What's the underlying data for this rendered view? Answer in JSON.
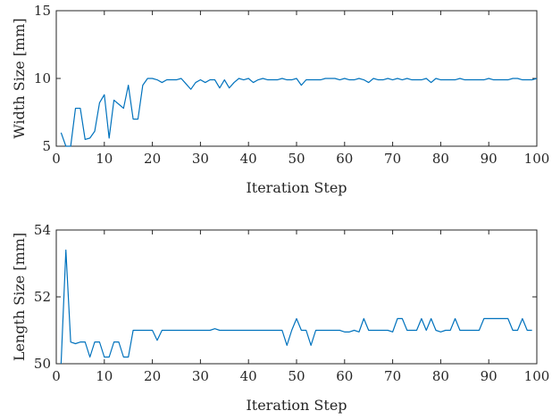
{
  "chart_data": [
    {
      "type": "line",
      "xlabel": "Iteration Step",
      "ylabel": "Width Size [mm]",
      "xlim": [
        0,
        100
      ],
      "ylim": [
        5,
        15
      ],
      "xticks": [
        0,
        10,
        20,
        30,
        40,
        50,
        60,
        70,
        80,
        90,
        100
      ],
      "yticks": [
        5,
        10,
        15
      ],
      "grid": false,
      "series": [
        {
          "color": "#0072bd",
          "x": [
            1,
            2,
            3,
            4,
            5,
            6,
            7,
            8,
            9,
            10,
            11,
            12,
            13,
            14,
            15,
            16,
            17,
            18,
            19,
            20,
            21,
            22,
            23,
            24,
            25,
            26,
            27,
            28,
            29,
            30,
            31,
            32,
            33,
            34,
            35,
            36,
            37,
            38,
            39,
            40,
            41,
            42,
            43,
            44,
            45,
            46,
            47,
            48,
            49,
            50,
            51,
            52,
            53,
            54,
            55,
            56,
            57,
            58,
            59,
            60,
            61,
            62,
            63,
            64,
            65,
            66,
            67,
            68,
            69,
            70,
            71,
            72,
            73,
            74,
            75,
            76,
            77,
            78,
            79,
            80,
            81,
            82,
            83,
            84,
            85,
            86,
            87,
            88,
            89,
            90,
            91,
            92,
            93,
            94,
            95,
            96,
            97,
            98,
            99,
            100
          ],
          "values": [
            6.0,
            5.0,
            5.0,
            7.8,
            7.8,
            5.5,
            5.6,
            6.1,
            8.2,
            8.8,
            5.6,
            8.4,
            8.1,
            7.8,
            9.5,
            7.0,
            7.0,
            9.5,
            10.0,
            10.0,
            9.9,
            9.7,
            9.9,
            9.9,
            9.9,
            10.0,
            9.6,
            9.2,
            9.7,
            9.9,
            9.7,
            9.9,
            9.9,
            9.3,
            9.9,
            9.3,
            9.7,
            10.0,
            9.9,
            10.0,
            9.7,
            9.9,
            10.0,
            9.9,
            9.9,
            9.9,
            10.0,
            9.9,
            9.9,
            10.0,
            9.5,
            9.9,
            9.9,
            9.9,
            9.9,
            10.0,
            10.0,
            10.0,
            9.9,
            10.0,
            9.9,
            9.9,
            10.0,
            9.9,
            9.7,
            10.0,
            9.9,
            9.9,
            10.0,
            9.9,
            10.0,
            9.9,
            10.0,
            9.9,
            9.9,
            9.9,
            10.0,
            9.7,
            10.0,
            9.9,
            9.9,
            9.9,
            9.9,
            10.0,
            9.9,
            9.9,
            9.9,
            9.9,
            9.9,
            10.0,
            9.9,
            9.9,
            9.9,
            9.9,
            10.0,
            10.0,
            9.9,
            9.9,
            9.9,
            10.0
          ]
        }
      ]
    },
    {
      "type": "line",
      "xlabel": "Iteration Step",
      "ylabel": "Length Size [mm]",
      "xlim": [
        0,
        100
      ],
      "ylim": [
        50,
        54
      ],
      "xticks": [
        0,
        10,
        20,
        30,
        40,
        50,
        60,
        70,
        80,
        90,
        100
      ],
      "yticks": [
        50,
        52,
        54
      ],
      "grid": false,
      "series": [
        {
          "color": "#0072bd",
          "x": [
            1,
            2,
            3,
            4,
            5,
            6,
            7,
            8,
            9,
            10,
            11,
            12,
            13,
            14,
            15,
            16,
            17,
            18,
            19,
            20,
            21,
            22,
            23,
            24,
            25,
            26,
            27,
            28,
            29,
            30,
            31,
            32,
            33,
            34,
            35,
            36,
            37,
            38,
            39,
            40,
            41,
            42,
            43,
            44,
            45,
            46,
            47,
            48,
            49,
            50,
            51,
            52,
            53,
            54,
            55,
            56,
            57,
            58,
            59,
            60,
            61,
            62,
            63,
            64,
            65,
            66,
            67,
            68,
            69,
            70,
            71,
            72,
            73,
            74,
            75,
            76,
            77,
            78,
            79,
            80,
            81,
            82,
            83,
            84,
            85,
            86,
            87,
            88,
            89,
            90,
            91,
            92,
            93,
            94,
            95,
            96,
            97,
            98,
            99
          ],
          "values": [
            50.0,
            53.4,
            50.65,
            50.6,
            50.65,
            50.65,
            50.2,
            50.65,
            50.65,
            50.2,
            50.2,
            50.65,
            50.65,
            50.2,
            50.2,
            51.0,
            51.0,
            51.0,
            51.0,
            51.0,
            50.7,
            51.0,
            51.0,
            51.0,
            51.0,
            51.0,
            51.0,
            51.0,
            51.0,
            51.0,
            51.0,
            51.0,
            51.05,
            51.0,
            51.0,
            51.0,
            51.0,
            51.0,
            51.0,
            51.0,
            51.0,
            51.0,
            51.0,
            51.0,
            51.0,
            51.0,
            51.0,
            50.55,
            51.0,
            51.35,
            51.0,
            51.0,
            50.55,
            51.0,
            51.0,
            51.0,
            51.0,
            51.0,
            51.0,
            50.95,
            50.95,
            51.0,
            50.95,
            51.35,
            51.0,
            51.0,
            51.0,
            51.0,
            51.0,
            50.95,
            51.35,
            51.35,
            51.0,
            51.0,
            51.0,
            51.35,
            51.0,
            51.35,
            51.0,
            50.95,
            51.0,
            51.0,
            51.35,
            51.0,
            51.0,
            51.0,
            51.0,
            51.0,
            51.35,
            51.35,
            51.35,
            51.35,
            51.35,
            51.35,
            51.0,
            51.0,
            51.35,
            51.0,
            51.0
          ]
        }
      ]
    }
  ]
}
